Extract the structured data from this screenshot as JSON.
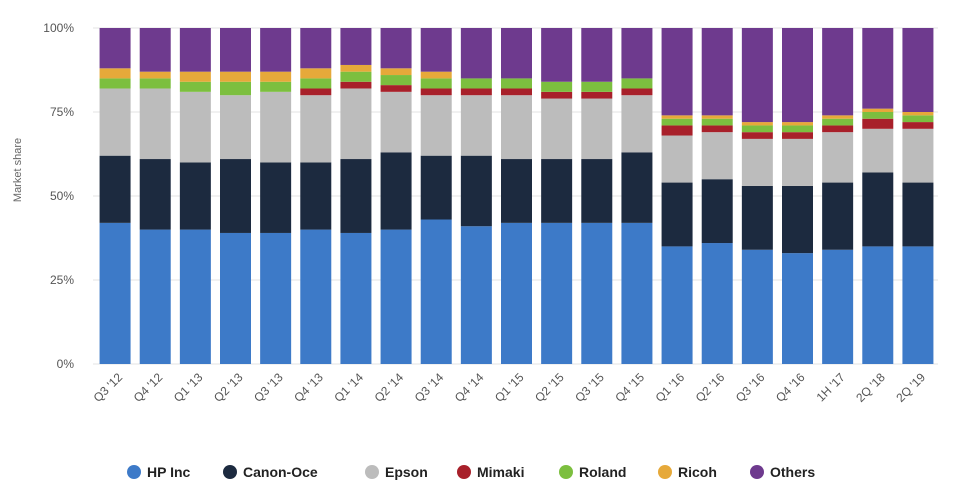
{
  "chart_data": {
    "type": "bar",
    "stacked": true,
    "percent_stacked": true,
    "ylabel": "Market share",
    "xlabel": "",
    "ylim": [
      0,
      100
    ],
    "y_ticks": [
      "0%",
      "25%",
      "50%",
      "75%",
      "100%"
    ],
    "grid": true,
    "legend_position": "bottom",
    "categories": [
      "Q3 '12",
      "Q4 '12",
      "Q1 '13",
      "Q2 '13",
      "Q3 '13",
      "Q4 '13",
      "Q1 '14",
      "Q2 '14",
      "Q3 '14",
      "Q4 '14",
      "Q1 '15",
      "Q2 '15",
      "Q3 '15",
      "Q4 '15",
      "Q1 '16",
      "Q2 '16",
      "Q3 '16",
      "Q4 '16",
      "1H '17",
      "2Q '18",
      "2Q '19"
    ],
    "series": [
      {
        "name": "HP Inc",
        "color": "#3d7ac8",
        "values": [
          42,
          40,
          40,
          39,
          39,
          40,
          39,
          40,
          43,
          41,
          42,
          42,
          42,
          42,
          35,
          36,
          34,
          33,
          34,
          35,
          35
        ]
      },
      {
        "name": "Canon-Oce",
        "color": "#1c2a3f",
        "values": [
          20,
          21,
          20,
          22,
          21,
          20,
          22,
          23,
          19,
          21,
          19,
          19,
          19,
          21,
          19,
          19,
          19,
          20,
          20,
          22,
          19
        ]
      },
      {
        "name": "Epson",
        "color": "#bcbcbc",
        "values": [
          20,
          21,
          21,
          19,
          21,
          20,
          21,
          18,
          18,
          18,
          19,
          18,
          18,
          17,
          14,
          14,
          14,
          14,
          15,
          13,
          16
        ]
      },
      {
        "name": "Mimaki",
        "color": "#a8202a",
        "values": [
          0,
          0,
          0,
          0,
          0,
          2,
          2,
          2,
          2,
          2,
          2,
          2,
          2,
          2,
          3,
          2,
          2,
          2,
          2,
          3,
          2
        ]
      },
      {
        "name": "Roland",
        "color": "#7cbf3f",
        "values": [
          3,
          3,
          3,
          4,
          3,
          3,
          3,
          3,
          3,
          3,
          3,
          3,
          3,
          3,
          2,
          2,
          2,
          2,
          2,
          2,
          2
        ]
      },
      {
        "name": "Ricoh",
        "color": "#e6a93a",
        "values": [
          3,
          2,
          3,
          3,
          3,
          3,
          2,
          2,
          2,
          0,
          0,
          0,
          0,
          0,
          1,
          1,
          1,
          1,
          1,
          1,
          1
        ]
      },
      {
        "name": "Others",
        "color": "#6e3a8e",
        "values": [
          12,
          13,
          13,
          13,
          13,
          12,
          11,
          12,
          13,
          15,
          15,
          16,
          16,
          15,
          26,
          26,
          28,
          28,
          26,
          24,
          25
        ]
      }
    ]
  }
}
